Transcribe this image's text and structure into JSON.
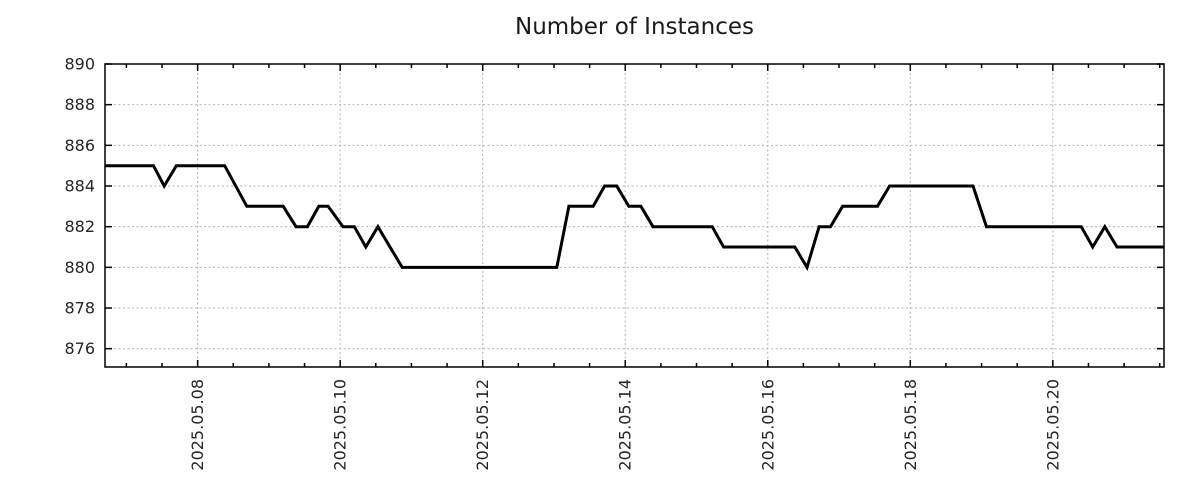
{
  "chart_data": {
    "type": "line",
    "title": "Number of Instances",
    "x_axis": {
      "unit": "day of month, May 2025",
      "range": [
        6.7,
        21.56
      ],
      "tick_positions": [
        8,
        10,
        12,
        14,
        16,
        18,
        20
      ],
      "tick_labels": [
        "2025.05.08",
        "2025.05.10",
        "2025.05.12",
        "2025.05.14",
        "2025.05.16",
        "2025.05.18",
        "2025.05.20"
      ],
      "minor_tick_step": 0.5
    },
    "y_axis": {
      "range": [
        875.1,
        890
      ],
      "ticks": [
        876,
        878,
        880,
        882,
        884,
        886,
        888,
        890
      ]
    },
    "grid": {
      "color": "#b3b3b3",
      "dashed": true
    },
    "line_color": "#000000",
    "text_color": "#262626",
    "series": [
      {
        "name": "instances",
        "color": "#000000",
        "points": [
          [
            6.7,
            885
          ],
          [
            7.38,
            885
          ],
          [
            7.53,
            884
          ],
          [
            7.7,
            885
          ],
          [
            8.38,
            885
          ],
          [
            8.69,
            883
          ],
          [
            9.2,
            883
          ],
          [
            9.38,
            882
          ],
          [
            9.54,
            882
          ],
          [
            9.7,
            883
          ],
          [
            9.83,
            883
          ],
          [
            10.04,
            882
          ],
          [
            10.2,
            882
          ],
          [
            10.36,
            881
          ],
          [
            10.53,
            882
          ],
          [
            10.87,
            880
          ],
          [
            13.04,
            880
          ],
          [
            13.21,
            883
          ],
          [
            13.55,
            883
          ],
          [
            13.71,
            884
          ],
          [
            13.88,
            884
          ],
          [
            14.05,
            883
          ],
          [
            14.22,
            883
          ],
          [
            14.39,
            882
          ],
          [
            15.22,
            882
          ],
          [
            15.38,
            881
          ],
          [
            16.38,
            881
          ],
          [
            16.55,
            880
          ],
          [
            16.72,
            882
          ],
          [
            16.88,
            882
          ],
          [
            17.05,
            883
          ],
          [
            17.54,
            883
          ],
          [
            17.71,
            884
          ],
          [
            18.88,
            884
          ],
          [
            19.07,
            882
          ],
          [
            20.4,
            882
          ],
          [
            20.56,
            881
          ],
          [
            20.73,
            882
          ],
          [
            20.9,
            881
          ],
          [
            21.56,
            881
          ]
        ]
      }
    ]
  }
}
